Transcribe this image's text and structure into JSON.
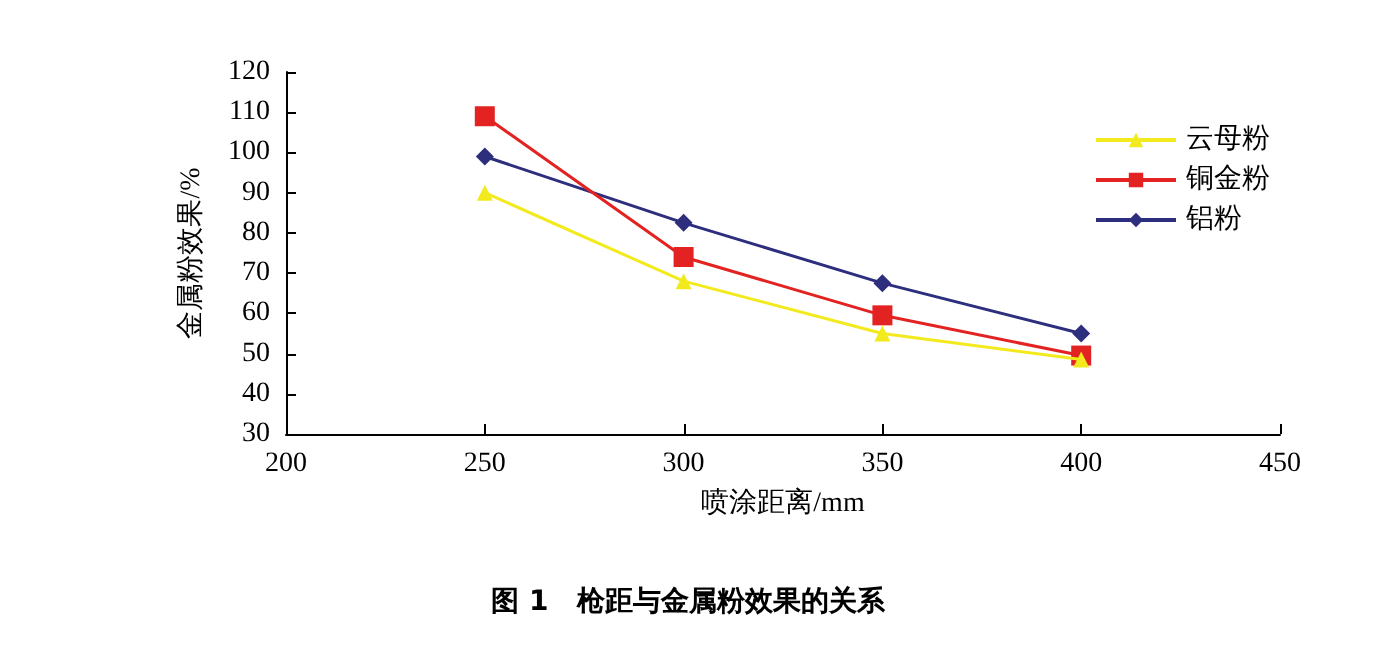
{
  "chart_data": {
    "type": "line",
    "title": "图 1　枪距与金属粉效果的关系",
    "xlabel": "喷涂距离/mm",
    "ylabel": "金属粉效果/%",
    "x": [
      250,
      300,
      350,
      400
    ],
    "series": [
      {
        "name": "云母粉",
        "color": "#f2ea1c",
        "marker": "triangle",
        "values": [
          90,
          68,
          55,
          48.5
        ]
      },
      {
        "name": "铜金粉",
        "color": "#e32222",
        "marker": "square",
        "values": [
          109,
          74,
          59.5,
          49.5
        ]
      },
      {
        "name": "铝粉",
        "color": "#2e2e7e",
        "marker": "diamond",
        "values": [
          99,
          82.5,
          67.5,
          55
        ]
      }
    ],
    "xlim": [
      200,
      450
    ],
    "xticks": [
      200,
      250,
      300,
      350,
      400,
      450
    ],
    "ylim": [
      30,
      120
    ],
    "yticks": [
      30,
      40,
      50,
      60,
      70,
      80,
      90,
      100,
      110,
      120
    ],
    "grid": false,
    "legend": "top right",
    "line_style": "solid"
  }
}
